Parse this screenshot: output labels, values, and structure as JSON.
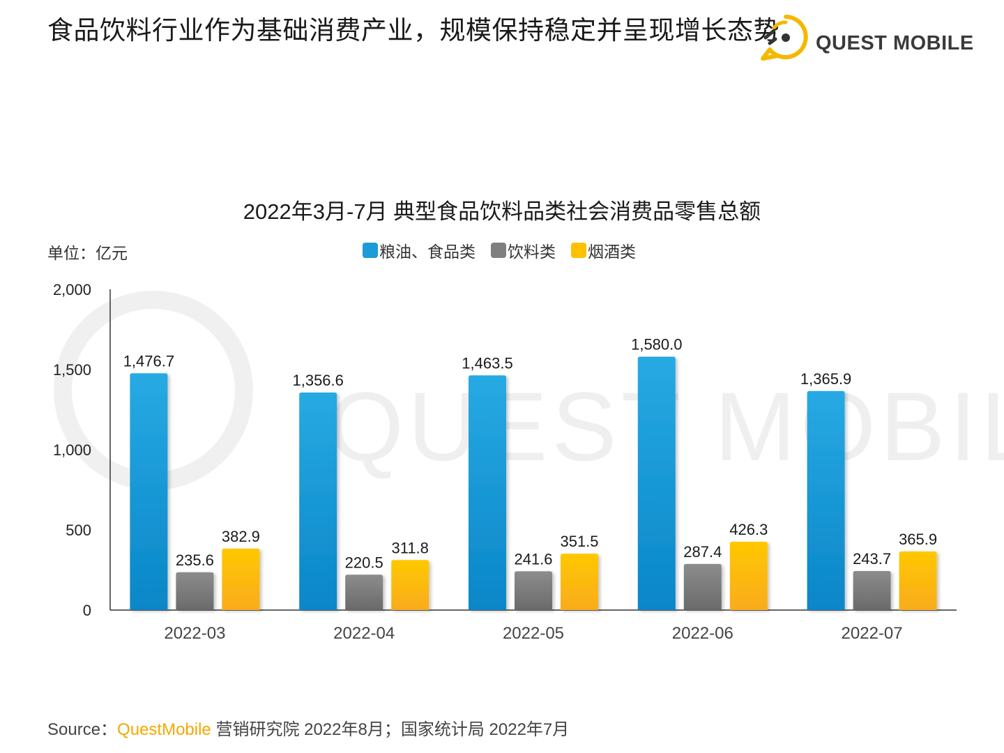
{
  "headline": "食品饮料行业作为基础消费产业，规模保持稳定并呈现增长态势",
  "logo": {
    "text": "QUEST MOBILE",
    "icon": "quest-mobile-logo-icon",
    "color": "#f5b800"
  },
  "watermark": "QUEST MOBILE",
  "unit_label": "单位：亿元",
  "legend": [
    {
      "label": "粮油、食品类",
      "color": "#1b9bd7"
    },
    {
      "label": "饮料类",
      "color": "#7f7f7f"
    },
    {
      "label": "烟酒类",
      "color": "#ffc000"
    }
  ],
  "source": {
    "prefix": "Source：",
    "brand": "QuestMobile",
    "rest": " 营销研究院 2022年8月；国家统计局 2022年7月"
  },
  "chart_data": {
    "type": "bar",
    "title": "2022年3月-7月 典型食品饮料品类社会消费品零售总额",
    "xlabel": "",
    "ylabel": "亿元",
    "ylim": [
      0,
      2000
    ],
    "yticks": [
      0,
      500,
      1000,
      1500,
      2000
    ],
    "ytick_labels": [
      "0",
      "500",
      "1,000",
      "1,500",
      "2,000"
    ],
    "grid": false,
    "legend_position": "top-center",
    "categories": [
      "2022-03",
      "2022-04",
      "2022-05",
      "2022-06",
      "2022-07"
    ],
    "series": [
      {
        "name": "粮油、食品类",
        "values": [
          1476.7,
          1356.6,
          1463.5,
          1580.0,
          1365.9
        ],
        "labels": [
          "1,476.7",
          "1,356.6",
          "1,463.5",
          "1,580.0",
          "1,365.9"
        ]
      },
      {
        "name": "饮料类",
        "values": [
          235.6,
          220.5,
          241.6,
          287.4,
          243.7
        ],
        "labels": [
          "235.6",
          "220.5",
          "241.6",
          "287.4",
          "243.7"
        ]
      },
      {
        "name": "烟酒类",
        "values": [
          382.9,
          311.8,
          351.5,
          426.3,
          365.9
        ],
        "labels": [
          "382.9",
          "311.8",
          "351.5",
          "426.3",
          "365.9"
        ]
      }
    ]
  }
}
